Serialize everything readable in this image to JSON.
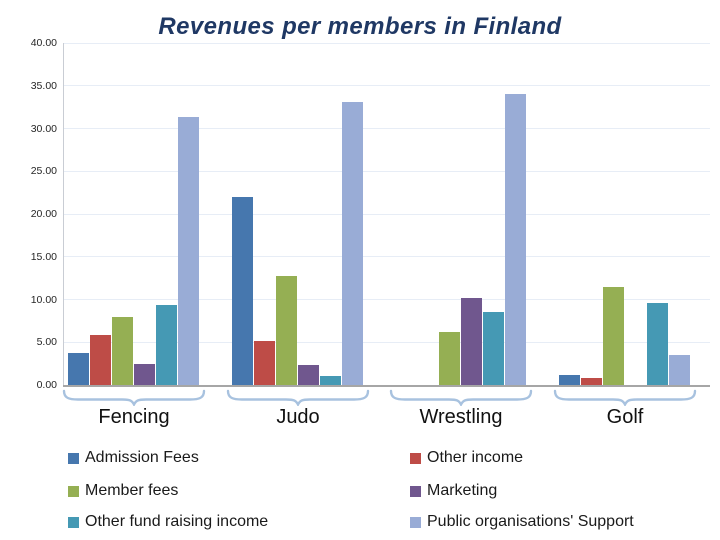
{
  "chart_data": {
    "type": "bar",
    "title": "Revenues per members in Finland",
    "categories": [
      "Fencing",
      "Judo",
      "Wrestling",
      "Golf"
    ],
    "series": [
      {
        "name": "Admission Fees",
        "color": "#4677AE",
        "values": [
          3.7,
          22.0,
          0,
          1.2
        ]
      },
      {
        "name": "Other income",
        "color": "#BE4C47",
        "values": [
          5.8,
          5.2,
          0,
          0.8
        ]
      },
      {
        "name": "Member fees",
        "color": "#95AF53",
        "values": [
          7.9,
          12.7,
          6.2,
          11.5
        ]
      },
      {
        "name": "Marketing",
        "color": "#70578E",
        "values": [
          2.5,
          2.3,
          10.2,
          0
        ]
      },
      {
        "name": "Other fund raising income",
        "color": "#4599B4",
        "values": [
          9.4,
          1.0,
          8.5,
          9.6
        ]
      },
      {
        "name": "Public organisations' Support",
        "color": "#99ACD6",
        "values": [
          31.3,
          33.1,
          34.0,
          3.5
        ]
      }
    ],
    "y_axis": {
      "min": 0,
      "max": 40,
      "step": 5,
      "decimals": 2
    },
    "grid": true,
    "legend_position": "bottom-two-columns",
    "legend_columns": [
      [
        0,
        2,
        4
      ],
      [
        1,
        3,
        5
      ]
    ],
    "colors": {
      "title": "#1F3864",
      "gridline": "#E7EDF6",
      "axis_y_line": "#C9CDD4",
      "axis_x_line": "#A6A6A6",
      "brace": "#A8C2DF"
    }
  }
}
